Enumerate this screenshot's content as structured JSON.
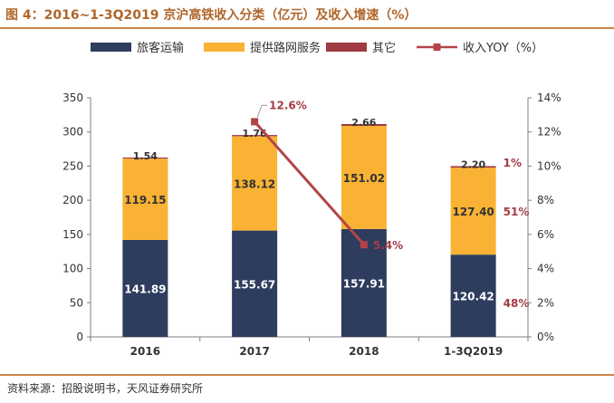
{
  "title": "图 4：2016~1-3Q2019 京沪高铁收入分类（亿元）及收入增速（%）",
  "source": "资料来源：招股说明书，天风证券研究所",
  "colors": {
    "passenger": "#2e3c5e",
    "network": "#f9b233",
    "other": "#9e3a42",
    "yoy": "#b34448",
    "title": "#b0662a",
    "rule": "#c8864a",
    "axis": "#7f7f7f",
    "label_dark": "#ffffff",
    "label_light": "#333333",
    "yoy_label": "#a33c45"
  },
  "chart_data": {
    "type": "bar",
    "stacked": true,
    "categories": [
      "2016",
      "2017",
      "2018",
      "1-3Q2019"
    ],
    "series": [
      {
        "name": "旅客运输",
        "values": [
          141.89,
          155.67,
          157.91,
          120.42
        ],
        "labels": [
          "141.89",
          "155.67",
          "157.91",
          "120.42"
        ]
      },
      {
        "name": "提供路网服务",
        "values": [
          119.15,
          138.12,
          151.02,
          127.4
        ],
        "labels": [
          "119.15",
          "138.12",
          "151.02",
          "127.40"
        ]
      },
      {
        "name": "其它",
        "values": [
          1.54,
          1.76,
          2.66,
          2.2
        ],
        "labels": [
          "1.54",
          "1.76",
          "2.66",
          "2.20"
        ]
      }
    ],
    "line_series": {
      "name": "收入YOY（%）",
      "axis": "right",
      "values": [
        null,
        12.6,
        5.4,
        null
      ],
      "labels": [
        "",
        "12.6%",
        "5.4%",
        ""
      ]
    },
    "share_labels": {
      "category": "1-3Q2019",
      "items": [
        {
          "series": "其它",
          "label": "1%"
        },
        {
          "series": "提供路网服务",
          "label": "51%"
        },
        {
          "series": "旅客运输",
          "label": "48%"
        }
      ]
    },
    "y_left": {
      "min": 0,
      "max": 350,
      "step": 50,
      "ticks": [
        "0",
        "50",
        "100",
        "150",
        "200",
        "250",
        "300",
        "350"
      ]
    },
    "y_right": {
      "min": 0,
      "max": 14,
      "step": 2,
      "ticks": [
        "0%",
        "2%",
        "4%",
        "6%",
        "8%",
        "10%",
        "12%",
        "14%"
      ]
    },
    "legend_position": "top",
    "grid": false
  }
}
